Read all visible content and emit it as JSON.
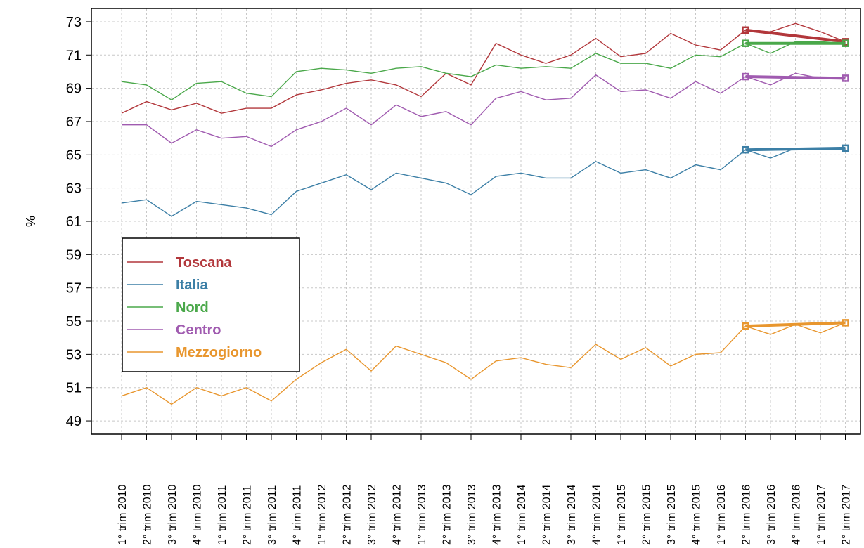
{
  "chart_data": {
    "type": "line",
    "title": "",
    "xlabel": "",
    "ylabel": "%",
    "ylim": [
      48.2,
      73.8
    ],
    "yticks": [
      49,
      51,
      53,
      55,
      57,
      59,
      61,
      63,
      65,
      67,
      69,
      71,
      73
    ],
    "grid": true,
    "legend_position": "left",
    "categories": [
      "1° trim 2010",
      "2° trim 2010",
      "3° trim 2010",
      "4° trim 2010",
      "1° trim 2011",
      "2° trim 2011",
      "3° trim 2011",
      "4° trim 2011",
      "1° trim 2012",
      "2° trim 2012",
      "3° trim 2012",
      "4° trim 2012",
      "1° trim 2013",
      "2° trim 2013",
      "3° trim 2013",
      "4° trim 2013",
      "1° trim 2014",
      "2° trim 2014",
      "3° trim 2014",
      "4° trim 2014",
      "1° trim 2015",
      "2° trim 2015",
      "3° trim 2015",
      "4° trim 2015",
      "1° trim 2016",
      "2° trim 2016",
      "3° trim 2016",
      "4° trim 2016",
      "1° trim 2017",
      "2° trim 2017"
    ],
    "series": [
      {
        "name": "Toscana",
        "color": "#b2373b",
        "values": [
          67.5,
          68.2,
          67.7,
          68.1,
          67.5,
          67.8,
          67.8,
          68.6,
          68.9,
          69.3,
          69.5,
          69.2,
          68.5,
          69.9,
          69.2,
          71.7,
          71.0,
          70.5,
          71.0,
          72.0,
          70.9,
          71.1,
          72.3,
          71.6,
          71.3,
          72.5,
          72.4,
          72.9,
          72.4,
          71.8
        ],
        "trend": {
          "from": "2° trim 2016",
          "to": "2° trim 2017",
          "start": 72.5,
          "end": 71.8
        }
      },
      {
        "name": "Italia",
        "color": "#3c7fa6",
        "values": [
          62.1,
          62.3,
          61.3,
          62.2,
          62.0,
          61.8,
          61.4,
          62.8,
          63.3,
          63.8,
          62.9,
          63.9,
          63.6,
          63.3,
          62.6,
          63.7,
          63.9,
          63.6,
          63.6,
          64.6,
          63.9,
          64.1,
          63.6,
          64.4,
          64.1,
          65.3,
          64.8,
          65.4,
          65.3,
          65.4
        ],
        "trend": {
          "from": "2° trim 2016",
          "to": "2° trim 2017",
          "start": 65.3,
          "end": 65.4
        }
      },
      {
        "name": "Nord",
        "color": "#4aa84a",
        "values": [
          69.4,
          69.2,
          68.3,
          69.3,
          69.4,
          68.7,
          68.5,
          70.0,
          70.2,
          70.1,
          69.9,
          70.2,
          70.3,
          69.9,
          69.7,
          70.4,
          70.2,
          70.3,
          70.2,
          71.1,
          70.5,
          70.5,
          70.2,
          71.0,
          70.9,
          71.7,
          71.1,
          71.8,
          71.8,
          71.7
        ],
        "trend": {
          "from": "2° trim 2016",
          "to": "2° trim 2017",
          "start": 71.7,
          "end": 71.7
        }
      },
      {
        "name": "Centro",
        "color": "#a05bb0",
        "values": [
          66.8,
          66.8,
          65.7,
          66.5,
          66.0,
          66.1,
          65.5,
          66.5,
          67.0,
          67.8,
          66.8,
          68.0,
          67.3,
          67.6,
          66.8,
          68.4,
          68.8,
          68.3,
          68.4,
          69.8,
          68.8,
          68.9,
          68.4,
          69.4,
          68.7,
          69.7,
          69.2,
          69.9,
          69.6,
          69.6
        ],
        "trend": {
          "from": "2° trim 2016",
          "to": "2° trim 2017",
          "start": 69.7,
          "end": 69.6
        }
      },
      {
        "name": "Mezzogiorno",
        "color": "#e8962e",
        "values": [
          50.5,
          51.0,
          50.0,
          51.0,
          50.5,
          51.0,
          50.2,
          51.5,
          52.5,
          53.3,
          52.0,
          53.5,
          53.0,
          52.5,
          51.5,
          52.6,
          52.8,
          52.4,
          52.2,
          53.6,
          52.7,
          53.4,
          52.3,
          53.0,
          53.1,
          54.7,
          54.2,
          54.8,
          54.3,
          54.9
        ],
        "trend": {
          "from": "2° trim 2016",
          "to": "2° trim 2017",
          "start": 54.7,
          "end": 54.9
        }
      }
    ]
  }
}
